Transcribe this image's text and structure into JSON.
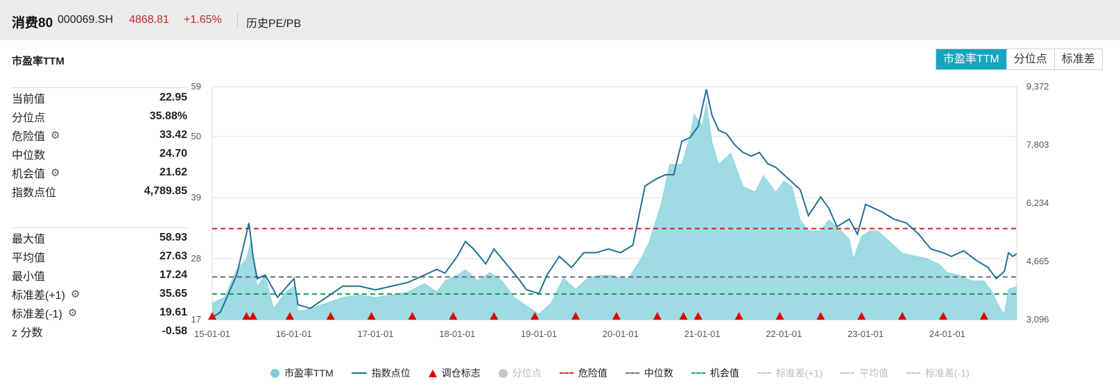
{
  "header": {
    "name": "消费80",
    "code": "000069.SH",
    "price": "4868.81",
    "change": "+1.65%",
    "tab_history": "历史PE/PB"
  },
  "panel": {
    "title": "市盈率TTM",
    "tabs": [
      "市盈率TTM",
      "分位点",
      "标准差"
    ],
    "active_tab": "市盈率TTM"
  },
  "stats_top": [
    {
      "label": "当前值",
      "value": "22.95",
      "gear": false
    },
    {
      "label": "分位点",
      "value": "35.88%",
      "gear": false
    },
    {
      "label": "危险值",
      "value": "33.42",
      "gear": true
    },
    {
      "label": "中位数",
      "value": "24.70",
      "gear": false
    },
    {
      "label": "机会值",
      "value": "21.62",
      "gear": true
    },
    {
      "label": "指数点位",
      "value": "4,789.85",
      "gear": false
    }
  ],
  "stats_bottom": [
    {
      "label": "最大值",
      "value": "58.93",
      "gear": false
    },
    {
      "label": "平均值",
      "value": "27.63",
      "gear": false
    },
    {
      "label": "最小值",
      "value": "17.24",
      "gear": false
    },
    {
      "label": "标准差(+1)",
      "value": "35.65",
      "gear": true
    },
    {
      "label": "标准差(-1)",
      "value": "19.61",
      "gear": true
    },
    {
      "label": "z 分数",
      "value": "-0.58",
      "gear": false
    }
  ],
  "legend": [
    {
      "label": "市盈率TTM",
      "kind": "dot",
      "color": "#7fcfd9",
      "active": true
    },
    {
      "label": "指数点位",
      "kind": "line",
      "color": "#1f6f97",
      "active": true
    },
    {
      "label": "调仓标志",
      "kind": "triangle",
      "color": "#e00000",
      "active": true
    },
    {
      "label": "分位点",
      "kind": "dot",
      "color": "#c8c8c8",
      "active": false
    },
    {
      "label": "危险值",
      "kind": "dash",
      "color": "#d81e1e",
      "active": true
    },
    {
      "label": "中位数",
      "kind": "dash",
      "color": "#6b6b7b",
      "active": true
    },
    {
      "label": "机会值",
      "kind": "dash",
      "color": "#12a04a",
      "active": true
    },
    {
      "label": "标准差(+1)",
      "kind": "dash",
      "color": "#c8c8c8",
      "active": false
    },
    {
      "label": "平均值",
      "kind": "dash",
      "color": "#c8c8c8",
      "active": false
    },
    {
      "label": "标准差(-1)",
      "kind": "dash",
      "color": "#c8c8c8",
      "active": false
    }
  ],
  "chart_data": {
    "type": "area",
    "colors": {
      "pe": "#7fcfd9",
      "index": "#1f6f97",
      "danger": "#d81e1e",
      "median": "#6b6b7b",
      "opportunity": "#12a04a",
      "marker": "#e00000"
    },
    "x_ticks": [
      "15-01-01",
      "16-01-01",
      "17-01-01",
      "18-01-01",
      "19-01-01",
      "20-01-01",
      "21-01-01",
      "22-01-01",
      "23-01-01",
      "24-01-01"
    ],
    "x_range": [
      2015.0,
      2024.85
    ],
    "y_left": {
      "ticks": [
        "17",
        "28",
        "39",
        "50",
        "59"
      ],
      "tick_values": [
        17,
        28,
        39,
        50,
        59
      ],
      "range": [
        17,
        59
      ]
    },
    "y_right": {
      "ticks": [
        "3,096",
        "4,665",
        "6,234",
        "7,803",
        "9,372"
      ],
      "tick_values": [
        3096,
        4665,
        6234,
        7803,
        9372
      ],
      "range": [
        3096,
        9372
      ]
    },
    "lines": {
      "danger": 33.42,
      "median": 24.7,
      "opportunity": 21.62
    },
    "series": [
      {
        "name": "市盈率TTM",
        "axis": "left",
        "x": [
          2015.0,
          2015.15,
          2015.3,
          2015.42,
          2015.47,
          2015.55,
          2015.65,
          2015.75,
          2015.9,
          2016.0,
          2016.05,
          2016.2,
          2016.4,
          2016.6,
          2016.8,
          2017.0,
          2017.2,
          2017.4,
          2017.6,
          2017.75,
          2017.85,
          2018.0,
          2018.1,
          2018.25,
          2018.4,
          2018.55,
          2018.7,
          2018.85,
          2019.0,
          2019.15,
          2019.3,
          2019.45,
          2019.6,
          2019.75,
          2019.9,
          2020.0,
          2020.1,
          2020.25,
          2020.35,
          2020.5,
          2020.6,
          2020.75,
          2020.85,
          2020.9,
          2021.0,
          2021.05,
          2021.12,
          2021.2,
          2021.35,
          2021.5,
          2021.65,
          2021.75,
          2021.9,
          2022.0,
          2022.1,
          2022.2,
          2022.3,
          2022.45,
          2022.55,
          2022.7,
          2022.8,
          2022.85,
          2022.95,
          2023.05,
          2023.15,
          2023.3,
          2023.45,
          2023.6,
          2023.75,
          2023.9,
          2024.0,
          2024.15,
          2024.3,
          2024.45,
          2024.55,
          2024.65,
          2024.7,
          2024.75,
          2024.85
        ],
        "values": [
          20,
          21,
          26,
          28,
          31,
          23,
          25,
          19,
          22,
          23,
          18.5,
          19,
          20,
          21,
          21.5,
          21,
          21.5,
          22,
          23.5,
          22,
          24,
          25,
          26,
          24,
          25.5,
          24,
          21,
          19.5,
          18,
          20,
          24.5,
          22.5,
          24.5,
          25,
          25,
          24.5,
          24.5,
          28,
          31,
          38,
          45,
          45,
          50,
          54,
          52,
          56,
          49,
          45,
          47,
          41,
          40,
          43,
          40,
          42,
          41,
          35,
          33,
          33,
          35,
          33,
          31.5,
          28,
          32,
          33,
          33,
          31,
          29,
          28.5,
          28,
          27,
          25.5,
          25,
          24,
          24,
          22,
          19,
          18,
          22.5,
          23
        ]
      },
      {
        "name": "指数点位",
        "axis": "right",
        "x": [
          2015.0,
          2015.1,
          2015.3,
          2015.45,
          2015.5,
          2015.55,
          2015.65,
          2015.8,
          2016.0,
          2016.05,
          2016.2,
          2016.4,
          2016.6,
          2016.8,
          2017.0,
          2017.2,
          2017.4,
          2017.6,
          2017.75,
          2017.85,
          2018.0,
          2018.1,
          2018.2,
          2018.35,
          2018.45,
          2018.6,
          2018.75,
          2018.85,
          2019.0,
          2019.1,
          2019.25,
          2019.4,
          2019.55,
          2019.7,
          2019.85,
          2020.0,
          2020.15,
          2020.3,
          2020.45,
          2020.55,
          2020.65,
          2020.75,
          2020.85,
          2020.95,
          2021.05,
          2021.12,
          2021.2,
          2021.3,
          2021.4,
          2021.5,
          2021.6,
          2021.7,
          2021.8,
          2021.9,
          2022.0,
          2022.1,
          2022.2,
          2022.3,
          2022.45,
          2022.55,
          2022.65,
          2022.8,
          2022.9,
          2023.0,
          2023.1,
          2023.2,
          2023.35,
          2023.5,
          2023.65,
          2023.8,
          2023.95,
          2024.05,
          2024.2,
          2024.35,
          2024.5,
          2024.6,
          2024.7,
          2024.75,
          2024.8,
          2024.85
        ],
        "values": [
          3150,
          3300,
          4300,
          5700,
          4800,
          4200,
          4300,
          3700,
          4200,
          3500,
          3400,
          3700,
          4000,
          4000,
          3900,
          4000,
          4100,
          4300,
          4450,
          4350,
          4800,
          5200,
          5000,
          4600,
          5000,
          4600,
          4200,
          3900,
          3800,
          4300,
          4800,
          4500,
          4900,
          4900,
          5000,
          4900,
          5100,
          6700,
          6900,
          7000,
          7000,
          7900,
          8000,
          8300,
          9300,
          8600,
          8200,
          8100,
          7800,
          7600,
          7500,
          7600,
          7300,
          7200,
          7000,
          6800,
          6600,
          5900,
          6400,
          6100,
          5600,
          5800,
          5400,
          6200,
          6100,
          6000,
          5800,
          5700,
          5400,
          5000,
          4900,
          4800,
          4950,
          4700,
          4500,
          4200,
          4400,
          4900,
          4800,
          4870
        ]
      }
    ],
    "markers": {
      "name": "调仓标志",
      "x": [
        2015.0,
        2015.42,
        2015.5,
        2015.95,
        2016.45,
        2016.95,
        2017.45,
        2017.95,
        2018.45,
        2018.95,
        2019.45,
        2019.95,
        2020.45,
        2020.77,
        2020.95,
        2021.45,
        2021.95,
        2022.45,
        2022.95,
        2023.45,
        2023.95,
        2024.45
      ]
    }
  }
}
